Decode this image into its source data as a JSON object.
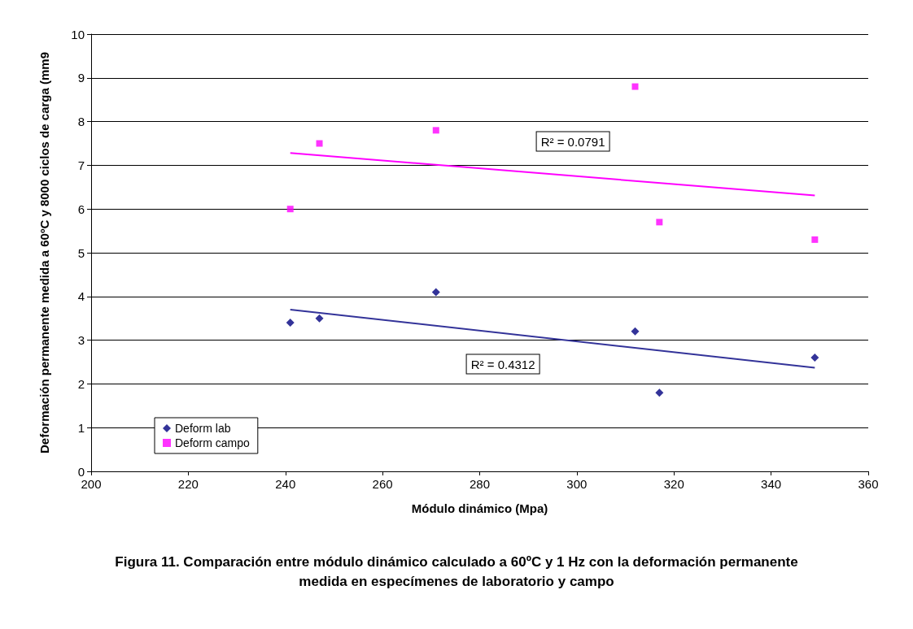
{
  "chart_data": {
    "type": "scatter",
    "xlabel": "Módulo dinámico (Mpa)",
    "ylabel": "Deformación permanente medida a 60ºC y 8000 ciclos de carga (mm9",
    "xlim": [
      200,
      360
    ],
    "xticks": [
      200,
      220,
      240,
      260,
      280,
      300,
      320,
      340,
      360
    ],
    "ylim": [
      0,
      10
    ],
    "yticks": [
      0,
      1,
      2,
      3,
      4,
      5,
      6,
      7,
      8,
      9,
      10
    ],
    "grid": "y",
    "legend": "bottom left",
    "series": [
      {
        "name": "Deform lab",
        "color": "#000080",
        "marker": "diamond",
        "x": [
          241,
          247,
          271,
          312,
          317,
          349
        ],
        "values": [
          3.4,
          3.5,
          4.1,
          3.2,
          1.8,
          2.6
        ]
      },
      {
        "name": "Deform campo",
        "color": "#ff00ff",
        "marker": "square",
        "x": [
          241,
          247,
          271,
          312,
          317,
          349
        ],
        "values": [
          6.0,
          7.5,
          7.8,
          8.8,
          5.7,
          5.3
        ]
      },
      {
        "type": "line",
        "color": "#333399",
        "x": [
          241,
          349
        ],
        "values": [
          3.7,
          2.37
        ]
      },
      {
        "type": "line",
        "color": "#ff00ff",
        "x": [
          241,
          349
        ],
        "values": [
          7.28,
          6.31
        ]
      }
    ],
    "annotations": [
      "R² = 0.0791",
      "R² = 0.4312",
      "Figura 11. Comparación entre módulo dinámico calculado a 60ºC y 1 Hz con la deformación permanente medida en especímenes de laboratorio y campo"
    ]
  }
}
